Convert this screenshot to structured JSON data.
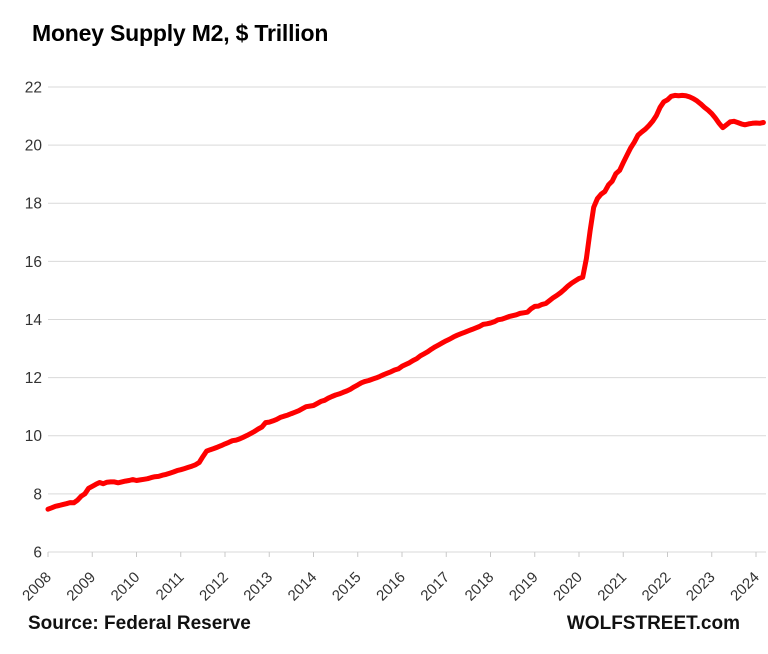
{
  "page": {
    "background": "#ffffff"
  },
  "header": {
    "title": "Money Supply M2, $ Trillion"
  },
  "footer": {
    "source": "Source: Federal Reserve",
    "branding": "WOLFSTREET.com"
  },
  "chart_data": {
    "type": "line",
    "title": "Money Supply M2, $ Trillion",
    "xlabel": "",
    "ylabel": "$ Trillion",
    "ylim": [
      6,
      22
    ],
    "y_ticks": [
      6,
      8,
      10,
      12,
      14,
      16,
      18,
      20,
      22
    ],
    "x_ticks": [
      2008,
      2009,
      2010,
      2011,
      2012,
      2013,
      2014,
      2015,
      2016,
      2017,
      2018,
      2019,
      2020,
      2021,
      2022,
      2023,
      2024
    ],
    "grid": "horizontal",
    "legend": "none",
    "line_color": "#fe0000",
    "grid_color": "#d9d9d9",
    "label_color": "#333333",
    "series": [
      {
        "name": "M2 money supply ($ trillion)",
        "frequency": "monthly",
        "start_year": 2008,
        "start_month": 1,
        "values": [
          7.47,
          7.52,
          7.57,
          7.6,
          7.63,
          7.66,
          7.7,
          7.69,
          7.78,
          7.92,
          8.0,
          8.19,
          8.26,
          8.33,
          8.39,
          8.35,
          8.4,
          8.41,
          8.41,
          8.38,
          8.41,
          8.44,
          8.46,
          8.49,
          8.46,
          8.48,
          8.5,
          8.52,
          8.56,
          8.59,
          8.6,
          8.64,
          8.67,
          8.71,
          8.75,
          8.8,
          8.83,
          8.87,
          8.91,
          8.95,
          9.0,
          9.08,
          9.28,
          9.47,
          9.52,
          9.56,
          9.61,
          9.66,
          9.72,
          9.77,
          9.83,
          9.85,
          9.89,
          9.95,
          10.01,
          10.08,
          10.15,
          10.23,
          10.3,
          10.45,
          10.47,
          10.51,
          10.56,
          10.63,
          10.67,
          10.71,
          10.76,
          10.81,
          10.86,
          10.93,
          11.0,
          11.02,
          11.04,
          11.11,
          11.18,
          11.22,
          11.29,
          11.35,
          11.4,
          11.44,
          11.49,
          11.54,
          11.6,
          11.68,
          11.75,
          11.82,
          11.87,
          11.9,
          11.95,
          11.99,
          12.04,
          12.1,
          12.15,
          12.2,
          12.26,
          12.3,
          12.39,
          12.45,
          12.51,
          12.59,
          12.65,
          12.75,
          12.82,
          12.89,
          12.98,
          13.06,
          13.13,
          13.2,
          13.27,
          13.33,
          13.4,
          13.46,
          13.51,
          13.56,
          13.61,
          13.66,
          13.71,
          13.76,
          13.83,
          13.85,
          13.88,
          13.92,
          13.99,
          14.01,
          14.05,
          14.1,
          14.13,
          14.16,
          14.21,
          14.23,
          14.25,
          14.37,
          14.45,
          14.46,
          14.52,
          14.55,
          14.65,
          14.75,
          14.83,
          14.92,
          15.03,
          15.15,
          15.25,
          15.33,
          15.41,
          15.45,
          16.1,
          17.05,
          17.86,
          18.16,
          18.31,
          18.4,
          18.63,
          18.76,
          19.02,
          19.13,
          19.4,
          19.65,
          19.9,
          20.1,
          20.34,
          20.45,
          20.55,
          20.68,
          20.83,
          21.02,
          21.3,
          21.49,
          21.56,
          21.68,
          21.71,
          21.7,
          21.71,
          21.7,
          21.66,
          21.6,
          21.52,
          21.42,
          21.3,
          21.2,
          21.08,
          20.93,
          20.75,
          20.6,
          20.7,
          20.8,
          20.82,
          20.78,
          20.73,
          20.7,
          20.73,
          20.75,
          20.76,
          20.75,
          20.78
        ]
      }
    ]
  }
}
